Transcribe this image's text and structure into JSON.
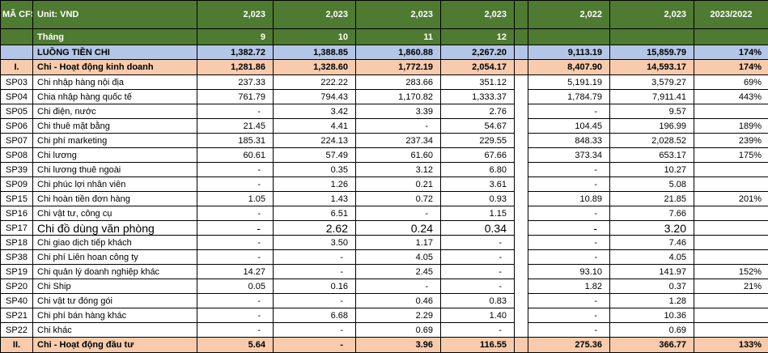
{
  "colors": {
    "header_bg": "#4e7a31",
    "header_text": "#ffffff",
    "year_text": "#fff2cc",
    "total_row_bg": "#b4c6e7",
    "section_row_bg": "#f8cbad",
    "grid": "#000000"
  },
  "header": {
    "col_code": "MÃ CFS",
    "col_unit": "Unit: VND",
    "year_cols": [
      "2,023",
      "2,023",
      "2,023",
      "2,023"
    ],
    "summary_year_cols": [
      "2,022",
      "2,023"
    ],
    "ratio_col": "2023/2022",
    "month_label": "Tháng",
    "months": [
      "9",
      "10",
      "11",
      "12"
    ]
  },
  "total_row": {
    "code": "",
    "label": "LUỒNG TIỀN CHI",
    "values": [
      "1,382.72",
      "1,388.85",
      "1,860.88",
      "2,267.20",
      "9,113.19",
      "15,859.79"
    ],
    "ratio": "174%"
  },
  "rows": [
    {
      "code": "I.",
      "label": "Chi - Hoạt động kinh doanh",
      "values": [
        "1,281.86",
        "1,328.60",
        "1,772.19",
        "2,054.17",
        "8,407.90",
        "14,593.17"
      ],
      "ratio": "174%",
      "style": "section"
    },
    {
      "code": "SP03",
      "label": "Chi nhập hàng nội địa",
      "values": [
        "237.33",
        "222.22",
        "283.66",
        "351.12",
        "5,191.19",
        "3,579.27"
      ],
      "ratio": "69%",
      "style": "normal"
    },
    {
      "code": "SP04",
      "label": "Chia nhập hàng quốc tế",
      "values": [
        "761.79",
        "794.43",
        "1,170.82",
        "1,333.37",
        "1,784.79",
        "7,911.41"
      ],
      "ratio": "443%",
      "style": "normal"
    },
    {
      "code": "SP05",
      "label": "Chi điện, nước",
      "values": [
        "-",
        "3.42",
        "3.39",
        "2.76",
        "-",
        "9.57"
      ],
      "ratio": "",
      "style": "normal"
    },
    {
      "code": "SP06",
      "label": "Chi thuê mặt bằng",
      "values": [
        "21.45",
        "4.41",
        "-",
        "54.67",
        "104.45",
        "196.99"
      ],
      "ratio": "189%",
      "style": "normal"
    },
    {
      "code": "SP07",
      "label": "Chi phí marketing",
      "values": [
        "185.31",
        "224.13",
        "237.34",
        "229.55",
        "848.33",
        "2,028.52"
      ],
      "ratio": "239%",
      "style": "normal"
    },
    {
      "code": "SP08",
      "label": "Chi lương",
      "values": [
        "60.61",
        "57.49",
        "61.60",
        "67.66",
        "373.34",
        "653.17"
      ],
      "ratio": "175%",
      "style": "normal"
    },
    {
      "code": "SP39",
      "label": "Chi lương thuê ngoài",
      "values": [
        "-",
        "0.35",
        "3.12",
        "6.80",
        "-",
        "10.27"
      ],
      "ratio": "",
      "style": "normal"
    },
    {
      "code": "SP09",
      "label": "Chi phúc lợi nhân viên",
      "values": [
        "-",
        "1.26",
        "0.21",
        "3.61",
        "-",
        "5.08"
      ],
      "ratio": "",
      "style": "normal"
    },
    {
      "code": "SP15",
      "label": "Chi hoàn tiền đơn hàng",
      "values": [
        "1.05",
        "1.43",
        "0.72",
        "0.93",
        "10.89",
        "21.85"
      ],
      "ratio": "201%",
      "style": "normal"
    },
    {
      "code": "SP16",
      "label": "Chi vật tư, công cụ",
      "values": [
        "-",
        "6.51",
        "-",
        "1.15",
        "-",
        "7.66"
      ],
      "ratio": "",
      "style": "normal"
    },
    {
      "code": "SP17",
      "label": "Chi đồ dùng văn phòng",
      "values": [
        "-",
        "2.62",
        "0.24",
        "0.34",
        "-",
        "3.20"
      ],
      "ratio": "",
      "style": "big"
    },
    {
      "code": "SP18",
      "label": "Chi giao dịch tiếp khách",
      "values": [
        "-",
        "3.50",
        "1.17",
        "-",
        "-",
        "7.46"
      ],
      "ratio": "",
      "style": "normal"
    },
    {
      "code": "SP38",
      "label": "Chi phí Liên hoan công ty",
      "values": [
        "-",
        "-",
        "4.05",
        "-",
        "-",
        "4.05"
      ],
      "ratio": "",
      "style": "normal"
    },
    {
      "code": "SP19",
      "label": "Chi quản lý doanh nghiệp khác",
      "values": [
        "14.27",
        "-",
        "2.45",
        "-",
        "93.10",
        "141.97"
      ],
      "ratio": "152%",
      "style": "normal"
    },
    {
      "code": "SP20",
      "label": "Chi Ship",
      "values": [
        "0.05",
        "0.16",
        "-",
        "-",
        "1.82",
        "0.37"
      ],
      "ratio": "21%",
      "style": "normal"
    },
    {
      "code": "SP40",
      "label": "Chi vật tư đóng gói",
      "values": [
        "-",
        "-",
        "0.46",
        "0.83",
        "-",
        "1.28"
      ],
      "ratio": "",
      "style": "normal"
    },
    {
      "code": "SP21",
      "label": "Chi phí bán hàng khác",
      "values": [
        "-",
        "6.68",
        "2.29",
        "1.40",
        "-",
        "10.36"
      ],
      "ratio": "",
      "style": "normal"
    },
    {
      "code": "SP22",
      "label": "Chi khác",
      "values": [
        "-",
        "-",
        "0.69",
        "-",
        "-",
        "0.69"
      ],
      "ratio": "",
      "style": "normal"
    },
    {
      "code": "II.",
      "label": "Chi - Hoạt động đầu tư",
      "values": [
        "5.64",
        "-",
        "3.96",
        "116.55",
        "275.36",
        "366.77"
      ],
      "ratio": "133%",
      "style": "section"
    }
  ]
}
